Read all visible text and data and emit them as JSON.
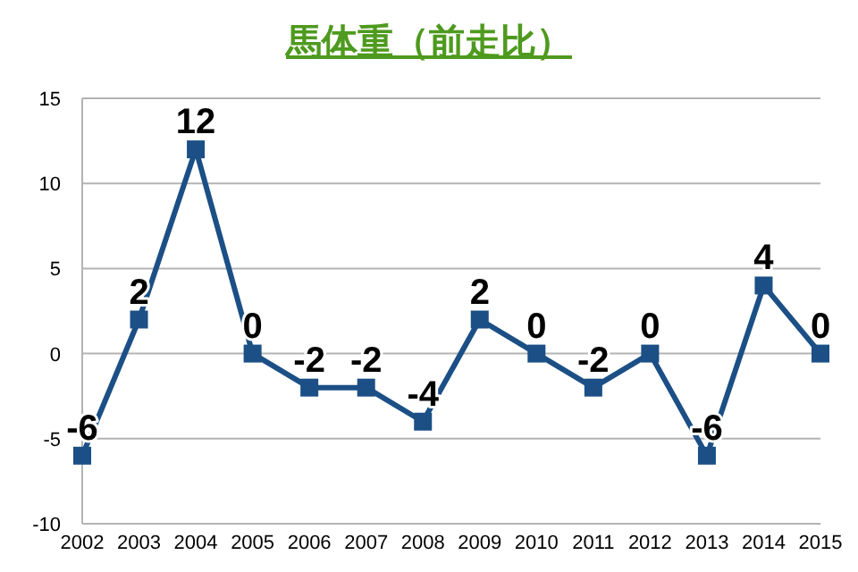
{
  "chart_data": {
    "type": "line",
    "title": "馬体重（前走比）",
    "categories": [
      "2002",
      "2003",
      "2004",
      "2005",
      "2006",
      "2007",
      "2008",
      "2009",
      "2010",
      "2011",
      "2012",
      "2013",
      "2014",
      "2015"
    ],
    "series": [
      {
        "color": "#1b4f85",
        "values": [
          -6,
          2,
          12,
          0,
          -2,
          -2,
          -4,
          2,
          0,
          -2,
          0,
          -6,
          4,
          0
        ]
      }
    ],
    "ylim": [
      -10,
      15
    ],
    "yticks": [
      -10,
      -5,
      0,
      5,
      10,
      15
    ],
    "grid": "y",
    "marker": "square",
    "line_style": "solid",
    "data_labels": true
  }
}
